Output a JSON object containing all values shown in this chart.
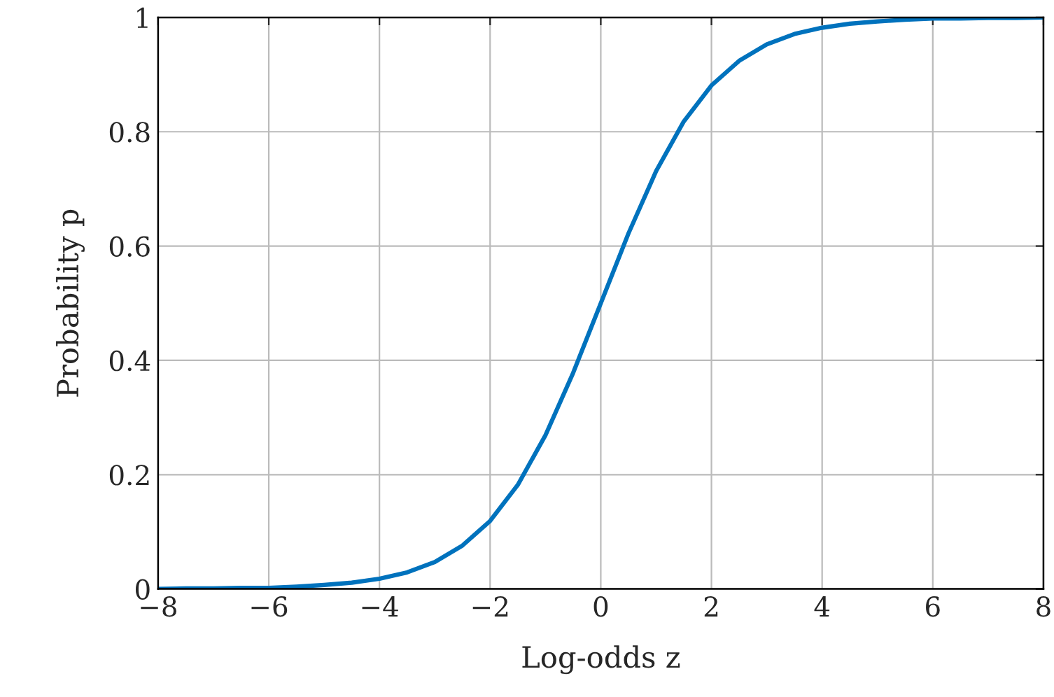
{
  "chart_data": {
    "type": "line",
    "xlabel": "Log-odds z",
    "ylabel": "Probability p",
    "x": [
      -8,
      -7.5,
      -7,
      -6.5,
      -6,
      -5.5,
      -5,
      -4.5,
      -4,
      -3.5,
      -3,
      -2.5,
      -2,
      -1.5,
      -1,
      -0.5,
      0,
      0.5,
      1,
      1.5,
      2,
      2.5,
      3,
      3.5,
      4,
      4.5,
      5,
      5.5,
      6,
      6.5,
      7,
      7.5,
      8
    ],
    "series": [
      {
        "color": "#0072bd",
        "values": [
          0.0,
          0.001,
          0.001,
          0.002,
          0.002,
          0.004,
          0.007,
          0.011,
          0.018,
          0.029,
          0.047,
          0.076,
          0.119,
          0.182,
          0.269,
          0.378,
          0.5,
          0.622,
          0.731,
          0.818,
          0.881,
          0.924,
          0.953,
          0.971,
          0.982,
          0.989,
          0.993,
          0.996,
          0.998,
          0.998,
          0.999,
          0.999,
          1.0
        ]
      }
    ],
    "xlim": [
      -8,
      8
    ],
    "xticks": [
      {
        "value": -8,
        "label": "−8"
      },
      {
        "value": -6,
        "label": "−6"
      },
      {
        "value": -4,
        "label": "−4"
      },
      {
        "value": -2,
        "label": "−2"
      },
      0,
      2,
      4,
      6,
      8
    ],
    "ylim": [
      0,
      1
    ],
    "yticks": [
      0,
      0.2,
      0.4,
      0.6,
      0.8,
      1
    ],
    "grid": true,
    "legend": false,
    "marker": "none",
    "line_style": "solid"
  }
}
